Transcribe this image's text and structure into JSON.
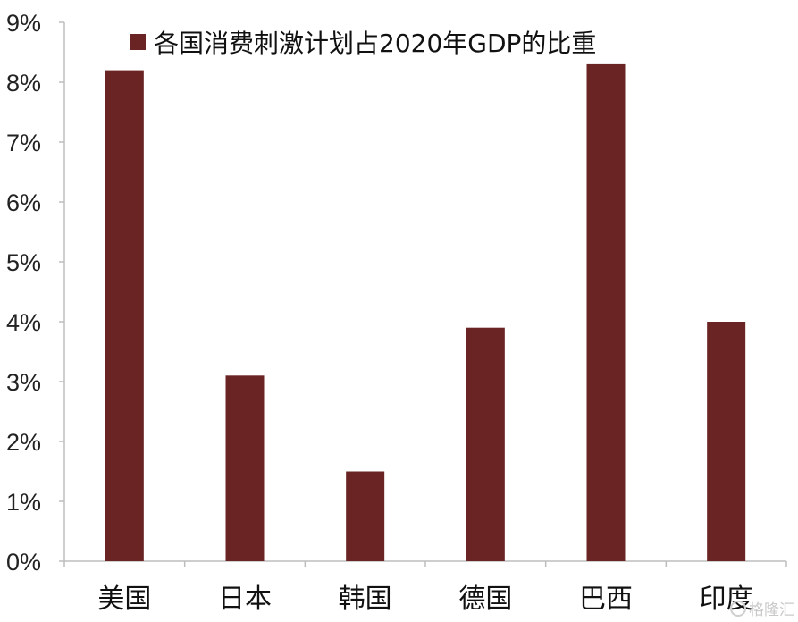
{
  "chart_data": {
    "type": "bar",
    "categories": [
      "美国",
      "日本",
      "韩国",
      "德国",
      "巴西",
      "印度"
    ],
    "series": [
      {
        "name": "各国消费刺激计划占2020年GDP的比重",
        "values": [
          8.2,
          3.1,
          1.5,
          3.9,
          8.3,
          4.0
        ],
        "color": "#6b2424"
      }
    ],
    "ylim": [
      0,
      9
    ],
    "yticks": [
      "0%",
      "1%",
      "2%",
      "3%",
      "4%",
      "5%",
      "6%",
      "7%",
      "8%",
      "9%"
    ],
    "grid": false,
    "legend_position": "top"
  },
  "watermark": {
    "text": "格隆汇"
  }
}
